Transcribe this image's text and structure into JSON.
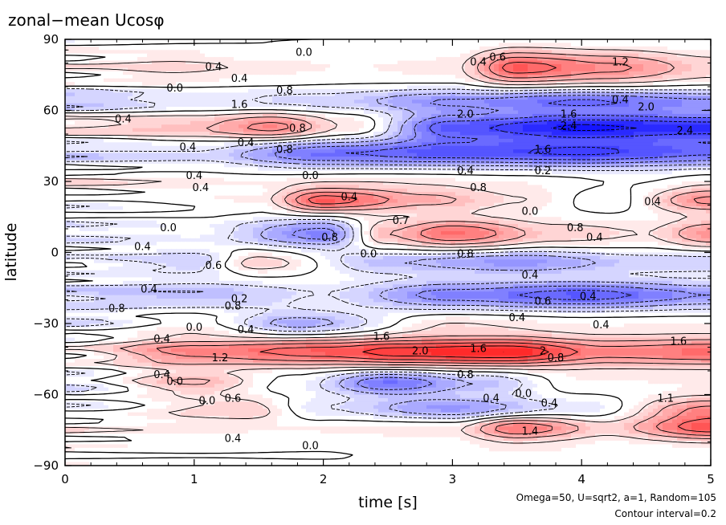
{
  "chart_data": {
    "type": "heatmap",
    "title": "zonal−mean Ucosφ",
    "xlabel": "time [s]",
    "ylabel": "latitude",
    "xlim": [
      0,
      5
    ],
    "ylim": [
      -90,
      90
    ],
    "x_ticks": [
      "0",
      "1",
      "2",
      "3",
      "4",
      "5"
    ],
    "y_ticks": [
      "90",
      "60",
      "30",
      "0",
      "−30",
      "−60",
      "−90"
    ],
    "notes": [
      "Omega=50, U=sqrt2, a=1, Random=105",
      "Contour interval=0.2"
    ],
    "colors": {
      "positive": "#ff0000",
      "negative": "#0000ff",
      "zero": "#ffffff"
    },
    "colorscale_max": 2.6,
    "bands": [
      {
        "lat": 78,
        "width": 7,
        "pattern": [
          [
            0,
            0.2
          ],
          [
            0.8,
            0.5
          ],
          [
            1.5,
            0.3
          ],
          [
            2.2,
            0.2
          ],
          [
            3.0,
            0.3
          ],
          [
            3.5,
            1.8
          ],
          [
            4.2,
            1.3
          ],
          [
            5,
            0.6
          ]
        ]
      },
      {
        "lat": 64,
        "width": 5,
        "pattern": [
          [
            0,
            -0.8
          ],
          [
            1.0,
            -0.4
          ],
          [
            2.0,
            -0.6
          ],
          [
            3.0,
            -1.2
          ],
          [
            4.0,
            -1.6
          ],
          [
            5,
            -1.2
          ]
        ]
      },
      {
        "lat": 53,
        "width": 6,
        "pattern": [
          [
            0,
            0.5
          ],
          [
            1.0,
            0.8
          ],
          [
            1.6,
            1.4
          ],
          [
            2.2,
            0.4
          ],
          [
            3.0,
            -1.8
          ],
          [
            4.0,
            -2.4
          ],
          [
            5,
            -2.2
          ]
        ]
      },
      {
        "lat": 42,
        "width": 6,
        "pattern": [
          [
            0,
            -0.6
          ],
          [
            1.0,
            -0.5
          ],
          [
            2.0,
            -1.6
          ],
          [
            3.0,
            -1.8
          ],
          [
            4.0,
            -2.0
          ],
          [
            5,
            -1.6
          ]
        ]
      },
      {
        "lat": 30,
        "width": 5,
        "pattern": [
          [
            0,
            0.4
          ],
          [
            1.5,
            0.2
          ],
          [
            2.5,
            0.3
          ],
          [
            3.5,
            0.2
          ],
          [
            4.5,
            0.0
          ],
          [
            5,
            0.2
          ]
        ]
      },
      {
        "lat": 22,
        "width": 5,
        "pattern": [
          [
            0,
            -0.2
          ],
          [
            1.5,
            0.2
          ],
          [
            2.0,
            1.8
          ],
          [
            2.8,
            0.9
          ],
          [
            3.5,
            0.4
          ],
          [
            4.2,
            -0.2
          ],
          [
            5,
            1.3
          ]
        ]
      },
      {
        "lat": 8,
        "width": 6,
        "pattern": [
          [
            0,
            -0.4
          ],
          [
            1.0,
            -0.2
          ],
          [
            2.0,
            -1.4
          ],
          [
            2.5,
            0.8
          ],
          [
            3.0,
            1.6
          ],
          [
            3.8,
            0.6
          ],
          [
            4.5,
            0.4
          ],
          [
            5,
            1.2
          ]
        ]
      },
      {
        "lat": -4,
        "width": 5,
        "pattern": [
          [
            0,
            -0.2
          ],
          [
            1.0,
            -0.6
          ],
          [
            1.5,
            0.6
          ],
          [
            2.5,
            -0.8
          ],
          [
            3.5,
            -1.2
          ],
          [
            4.5,
            -0.6
          ],
          [
            5,
            -0.6
          ]
        ]
      },
      {
        "lat": -18,
        "width": 6,
        "pattern": [
          [
            0,
            -0.6
          ],
          [
            1.0,
            -0.8
          ],
          [
            2.0,
            -0.4
          ],
          [
            3.0,
            -1.4
          ],
          [
            4.0,
            -1.8
          ],
          [
            5,
            -1.2
          ]
        ]
      },
      {
        "lat": -30,
        "width": 5,
        "pattern": [
          [
            0,
            -0.4
          ],
          [
            1.0,
            0.2
          ],
          [
            1.8,
            -1.0
          ],
          [
            3.0,
            0.4
          ],
          [
            4.0,
            0.2
          ],
          [
            5,
            0.2
          ]
        ]
      },
      {
        "lat": -42,
        "width": 6,
        "pattern": [
          [
            0,
            0.2
          ],
          [
            1.0,
            1.4
          ],
          [
            2.0,
            1.8
          ],
          [
            2.6,
            2.2
          ],
          [
            3.4,
            2.4
          ],
          [
            4.2,
            1.4
          ],
          [
            5,
            1.6
          ]
        ]
      },
      {
        "lat": -55,
        "width": 5,
        "pattern": [
          [
            0,
            -0.4
          ],
          [
            1.0,
            0.8
          ],
          [
            1.8,
            -0.2
          ],
          [
            2.5,
            -1.6
          ],
          [
            3.2,
            -0.8
          ],
          [
            4.0,
            0.2
          ],
          [
            5,
            0.2
          ]
        ]
      },
      {
        "lat": -66,
        "width": 5,
        "pattern": [
          [
            0,
            -0.2
          ],
          [
            1.4,
            0.6
          ],
          [
            2.0,
            -0.4
          ],
          [
            3.0,
            -1.2
          ],
          [
            4.0,
            -0.4
          ],
          [
            5,
            1.2
          ]
        ]
      },
      {
        "lat": -74,
        "width": 5,
        "pattern": [
          [
            0,
            0.3
          ],
          [
            1.5,
            0.2
          ],
          [
            3.0,
            0.4
          ],
          [
            3.5,
            1.6
          ],
          [
            4.2,
            0.6
          ],
          [
            5,
            1.8
          ]
        ]
      },
      {
        "lat": -84,
        "width": 4,
        "pattern": [
          [
            0,
            0.1
          ],
          [
            2.0,
            0.0
          ],
          [
            3.5,
            0.2
          ],
          [
            5,
            0.1
          ]
        ]
      }
    ],
    "contour_labels": [
      {
        "x": 1.15,
        "y": 77,
        "text": "0.4"
      },
      {
        "x": 1.85,
        "y": 83,
        "text": "0.0"
      },
      {
        "x": 4.3,
        "y": 79,
        "text": "1.2"
      },
      {
        "x": 3.2,
        "y": 79,
        "text": "0.4"
      },
      {
        "x": 3.35,
        "y": 81,
        "text": "0.6"
      },
      {
        "x": 1.35,
        "y": 72,
        "text": "0.4"
      },
      {
        "x": 1.7,
        "y": 67,
        "text": "0.8"
      },
      {
        "x": 0.85,
        "y": 68,
        "text": "0.0"
      },
      {
        "x": 1.35,
        "y": 61,
        "text": "1.6"
      },
      {
        "x": 4.3,
        "y": 63,
        "text": "0.4"
      },
      {
        "x": 4.5,
        "y": 60,
        "text": "2.0"
      },
      {
        "x": 3.9,
        "y": 57,
        "text": "1.6"
      },
      {
        "x": 3.1,
        "y": 57,
        "text": "2.0"
      },
      {
        "x": 3.9,
        "y": 52,
        "text": "2.4"
      },
      {
        "x": 4.8,
        "y": 50,
        "text": "2.4"
      },
      {
        "x": 0.45,
        "y": 55,
        "text": "0.4"
      },
      {
        "x": 1.8,
        "y": 51,
        "text": "0.8"
      },
      {
        "x": 1.4,
        "y": 45,
        "text": "0.4"
      },
      {
        "x": 1.7,
        "y": 42,
        "text": "0.8"
      },
      {
        "x": 0.95,
        "y": 43,
        "text": "0.4"
      },
      {
        "x": 3.7,
        "y": 42,
        "text": "1.6"
      },
      {
        "x": 1.0,
        "y": 31,
        "text": "0.4"
      },
      {
        "x": 1.9,
        "y": 31,
        "text": "0.0"
      },
      {
        "x": 3.1,
        "y": 33,
        "text": "0.4"
      },
      {
        "x": 3.7,
        "y": 33,
        "text": "0.2"
      },
      {
        "x": 1.05,
        "y": 26,
        "text": "0.4"
      },
      {
        "x": 2.2,
        "y": 22,
        "text": "0.4"
      },
      {
        "x": 3.2,
        "y": 26,
        "text": "0.8"
      },
      {
        "x": 4.55,
        "y": 20,
        "text": "0.4"
      },
      {
        "x": 3.6,
        "y": 16,
        "text": "0.0"
      },
      {
        "x": 0.8,
        "y": 9,
        "text": "0.0"
      },
      {
        "x": 2.6,
        "y": 12,
        "text": "0.7"
      },
      {
        "x": 2.05,
        "y": 5,
        "text": "0.8"
      },
      {
        "x": 3.95,
        "y": 9,
        "text": "0.8"
      },
      {
        "x": 4.1,
        "y": 5,
        "text": "0.4"
      },
      {
        "x": 0.6,
        "y": 1,
        "text": "0.4"
      },
      {
        "x": 2.35,
        "y": -2,
        "text": "0.0"
      },
      {
        "x": 3.1,
        "y": -2,
        "text": "0.8"
      },
      {
        "x": 1.15,
        "y": -7,
        "text": "0.6"
      },
      {
        "x": 3.6,
        "y": -11,
        "text": "0.4"
      },
      {
        "x": 0.65,
        "y": -17,
        "text": "0.4"
      },
      {
        "x": 4.05,
        "y": -20,
        "text": "0.4"
      },
      {
        "x": 1.35,
        "y": -21,
        "text": "0.2"
      },
      {
        "x": 3.7,
        "y": -22,
        "text": "0.6"
      },
      {
        "x": 1.3,
        "y": -24,
        "text": "0.8"
      },
      {
        "x": 0.4,
        "y": -25,
        "text": "0.8"
      },
      {
        "x": 3.5,
        "y": -29,
        "text": "0.4"
      },
      {
        "x": 1.0,
        "y": -33,
        "text": "0.0"
      },
      {
        "x": 1.4,
        "y": -34,
        "text": "0.4"
      },
      {
        "x": 4.15,
        "y": -32,
        "text": "0.4"
      },
      {
        "x": 0.75,
        "y": -38,
        "text": "0.4"
      },
      {
        "x": 2.45,
        "y": -37,
        "text": "1.6"
      },
      {
        "x": 2.75,
        "y": -43,
        "text": "2.0"
      },
      {
        "x": 3.2,
        "y": -42,
        "text": "1.6"
      },
      {
        "x": 3.7,
        "y": -43,
        "text": "2"
      },
      {
        "x": 4.75,
        "y": -39,
        "text": "1.6"
      },
      {
        "x": 1.2,
        "y": -46,
        "text": "1.2"
      },
      {
        "x": 3.8,
        "y": -46,
        "text": "0.8"
      },
      {
        "x": 0.75,
        "y": -53,
        "text": "0.4"
      },
      {
        "x": 0.85,
        "y": -56,
        "text": "0.0"
      },
      {
        "x": 3.1,
        "y": -53,
        "text": "0.8"
      },
      {
        "x": 3.3,
        "y": -63,
        "text": "0.4"
      },
      {
        "x": 3.55,
        "y": -61,
        "text": "0.0"
      },
      {
        "x": 3.75,
        "y": -65,
        "text": "0.4"
      },
      {
        "x": 1.1,
        "y": -64,
        "text": "0.0"
      },
      {
        "x": 1.3,
        "y": -63,
        "text": "0.6"
      },
      {
        "x": 4.65,
        "y": -63,
        "text": "1.1"
      },
      {
        "x": 3.6,
        "y": -77,
        "text": "1.4"
      },
      {
        "x": 1.3,
        "y": -80,
        "text": "0.4"
      },
      {
        "x": 1.9,
        "y": -83,
        "text": "0.0"
      }
    ]
  }
}
